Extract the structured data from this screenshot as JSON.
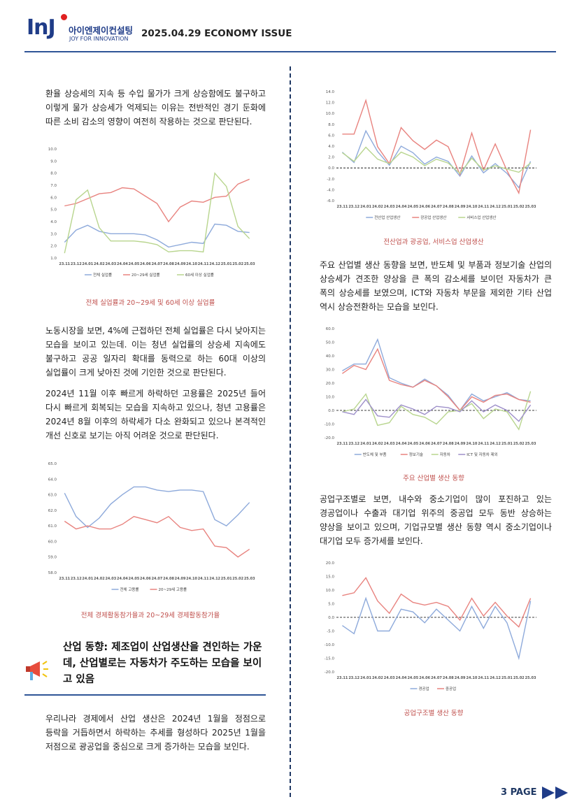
{
  "header": {
    "logo_mark": "InJ",
    "logo_name": "아이엔제이컨설팅",
    "logo_slogan": "JOY FOR INNOVATION",
    "title": "2025.04.29 ECONOMY ISSUE"
  },
  "paragraphs": [
    "환율 상승세의 지속 등 수입 물가가 크게 상승함에도 불구하고 이렇게 물가 상승세가 억제되는 이유는 전반적인 경기 둔화에 따른 소비 감소의 영향이 여전히 작용하는 것으로 판단된다.",
    "노동시장을 보면, 4%에 근접하던 전체 실업률은 다시 낮아지는 모습을 보이고 있는데. 이는 청년 실업률의 상승세 지속에도 불구하고 공공 일자리 확대를 동력으로 하는 60대 이상의 실업률이 크게 낮아진 것에 기인한 것으로 판단된다.",
    "2024년 11월 이후 빠르게 하락하던 고용률은 2025년 들어 다시 빠르게 회복되는 모습을 지속하고 있으나, 청년 고용률은 2024년 8월 이후의 하락세가 다소 완화되고 있으나 본격적인 개선 신호로 보기는 아직 어려운 것으로 판단된다.",
    "우리나라 경제에서 산업 생산은 2024년 1월을 정점으로 등락을 거듭하면서 하락하는 추세를 형성하다 2025년 1월을 저점으로 광공업을 중심으로 크게 증가하는 모습을 보인다.",
    "주요 산업별 생산 동향을 보면, 반도체 및 부품과 정보기술 산업의 상승세가 견조한 양상을 큰 폭의 감소세를 보이던 자동차가 큰 폭의 상승세를 보였으며, ICT와 자동차 부문을 제외한 기타 산업 역시 상승전환하는 모습을 보인다.",
    "공업구조별로 보면, 내수와 중소기업이 많이 포진하고 있는 경공업이나 수출과 대기업 위주의 중공업 모두 동반 상승하는 양상을 보이고 있으며, 기업규모별 생산 동향 역시 중소기업이나 대기업 모두 증가세를 보인다."
  ],
  "section_heading": "산업 동향: 제조업이 산업생산을 견인하는 가운데, 산업별로는 자동차가 주도하는 모습을 보이고 있음",
  "footer": {
    "page": "3 PAGE"
  },
  "chart_data": [
    {
      "type": "line",
      "caption": "전체 실업률과 20~29세 및 60세 이상 실업률",
      "categories": [
        "23.11",
        "23.12",
        "24.01",
        "24.02",
        "24.03",
        "24.04",
        "24.05",
        "24.06",
        "24.07",
        "24.08",
        "24.09",
        "24.10",
        "24.11",
        "24.12",
        "25.01",
        "25.02",
        "25.03"
      ],
      "ylim": [
        1,
        10
      ],
      "yticks": [
        {
          "value": 1,
          "label": "1.0"
        },
        {
          "value": 2,
          "label": "2.0"
        },
        {
          "value": 3,
          "label": "3.0"
        },
        {
          "value": 4,
          "label": "4.0"
        },
        {
          "value": 5,
          "label": "5.0"
        },
        {
          "value": 6,
          "label": "6.0"
        },
        {
          "value": 7,
          "label": "7.0"
        },
        {
          "value": 8,
          "label": "8.0"
        },
        {
          "value": 9,
          "label": "9.0"
        },
        {
          "value": 10,
          "label": "10.0"
        }
      ],
      "zero_line": false,
      "series": [
        {
          "name": "전체 실업률",
          "color": "#8eaadb",
          "values": [
            2.3,
            3.3,
            3.7,
            3.2,
            3.0,
            3.0,
            3.0,
            2.9,
            2.5,
            1.9,
            2.1,
            2.3,
            2.2,
            3.8,
            3.7,
            3.2,
            3.1
          ]
        },
        {
          "name": "20~29세 실업률",
          "color": "#e8837f",
          "values": [
            5.3,
            5.5,
            5.9,
            6.3,
            6.4,
            6.8,
            6.7,
            6.1,
            5.5,
            4.0,
            5.2,
            5.7,
            5.6,
            6.0,
            6.1,
            7.1,
            7.5
          ]
        },
        {
          "name": "60세 이상 실업률",
          "color": "#b8d58e",
          "values": [
            1.4,
            5.8,
            6.6,
            3.5,
            2.4,
            2.4,
            2.4,
            2.3,
            2.1,
            1.5,
            1.6,
            1.6,
            1.5,
            8.0,
            6.9,
            3.6,
            2.6
          ]
        }
      ]
    },
    {
      "type": "line",
      "caption": "전체 경제활동참가율과 20~29세 경제활동참가율",
      "categories": [
        "23.11",
        "23.12",
        "24.01",
        "24.02",
        "24.03",
        "24.04",
        "24.05",
        "24.06",
        "24.07",
        "24.08",
        "24.09",
        "24.10",
        "24.11",
        "24.12",
        "25.01",
        "25.02",
        "25.03"
      ],
      "ylim": [
        58,
        65
      ],
      "yticks": [
        {
          "value": 58,
          "label": "58.0"
        },
        {
          "value": 59,
          "label": "59.0"
        },
        {
          "value": 60,
          "label": "60.0"
        },
        {
          "value": 61,
          "label": "61.0"
        },
        {
          "value": 62,
          "label": "62.0"
        },
        {
          "value": 63,
          "label": "63.0"
        },
        {
          "value": 64,
          "label": "64.0"
        },
        {
          "value": 65,
          "label": "65.0"
        }
      ],
      "zero_line": false,
      "series": [
        {
          "name": "전체 고용률",
          "color": "#8eaadb",
          "values": [
            63.1,
            61.6,
            60.9,
            61.5,
            62.4,
            63.0,
            63.5,
            63.5,
            63.3,
            63.2,
            63.3,
            63.3,
            63.2,
            61.4,
            61.0,
            61.7,
            62.5
          ]
        },
        {
          "name": "20~29세 고용률",
          "color": "#e8837f",
          "values": [
            61.3,
            60.8,
            61.0,
            60.8,
            60.8,
            61.1,
            61.6,
            61.4,
            61.2,
            61.6,
            60.9,
            60.7,
            60.8,
            59.7,
            59.6,
            59.0,
            59.5
          ]
        }
      ]
    },
    {
      "type": "line",
      "caption": "전산업과 광공업, 서비스업 산업생산",
      "categories": [
        "23.11",
        "23.12",
        "24.01",
        "24.02",
        "24.03",
        "24.04",
        "24.05",
        "24.06",
        "24.07",
        "24.08",
        "24.09",
        "24.10",
        "24.11",
        "24.12",
        "25.01",
        "25.02",
        "25.03"
      ],
      "ylim": [
        -6,
        14
      ],
      "yticks": [
        {
          "value": -6,
          "label": "-6.0"
        },
        {
          "value": -4,
          "label": "-4.0"
        },
        {
          "value": -2,
          "label": "-2.0"
        },
        {
          "value": 0,
          "label": "0.0"
        },
        {
          "value": 2,
          "label": "2.0"
        },
        {
          "value": 4,
          "label": "4.0"
        },
        {
          "value": 6,
          "label": "6.0"
        },
        {
          "value": 8,
          "label": "8.0"
        },
        {
          "value": 10,
          "label": "10.0"
        },
        {
          "value": 12,
          "label": "12.0"
        },
        {
          "value": 14,
          "label": "14.0"
        }
      ],
      "zero_line": true,
      "series": [
        {
          "name": "전산업 산업생산",
          "color": "#8eaadb",
          "values": [
            2.9,
            1.0,
            6.8,
            3.0,
            0.5,
            4.0,
            2.8,
            0.7,
            2.0,
            1.2,
            -1.5,
            2.2,
            -0.9,
            0.8,
            -1.0,
            -3.6,
            1.2
          ]
        },
        {
          "name": "광공업 산업생산",
          "color": "#e8837f",
          "values": [
            6.2,
            6.2,
            12.4,
            3.9,
            0.8,
            7.4,
            5.0,
            3.4,
            5.1,
            3.9,
            -1.2,
            6.4,
            -0.4,
            4.4,
            -0.5,
            -4.6,
            7.0
          ]
        },
        {
          "name": "서비스업 산업생산",
          "color": "#b8d58e",
          "values": [
            2.8,
            1.2,
            3.8,
            1.6,
            0.8,
            2.9,
            2.0,
            0.4,
            1.6,
            0.9,
            -1.0,
            1.8,
            -0.4,
            0.4,
            -0.2,
            -0.8,
            0.9
          ]
        }
      ]
    },
    {
      "type": "line",
      "caption": "주요 산업별 생산 동향",
      "categories": [
        "23.11",
        "23.12",
        "24.01",
        "24.02",
        "24.03",
        "24.04",
        "24.05",
        "24.06",
        "24.07",
        "24.08",
        "24.09",
        "24.10",
        "24.11",
        "24.12",
        "25.01",
        "25.02",
        "25.03"
      ],
      "ylim": [
        -20,
        60
      ],
      "yticks": [
        {
          "value": -20,
          "label": "-20.0"
        },
        {
          "value": -10,
          "label": "-10.0"
        },
        {
          "value": 0,
          "label": "0.0"
        },
        {
          "value": 10,
          "label": "10.0"
        },
        {
          "value": 20,
          "label": "20.0"
        },
        {
          "value": 30,
          "label": "30.0"
        },
        {
          "value": 40,
          "label": "40.0"
        },
        {
          "value": 50,
          "label": "50.0"
        },
        {
          "value": 60,
          "label": "60.0"
        }
      ],
      "zero_line": true,
      "series": [
        {
          "name": "반도체 및 부품",
          "color": "#8eaadb",
          "values": [
            29,
            34,
            34,
            52,
            24,
            20,
            17,
            23,
            18,
            11,
            0,
            12,
            7,
            10,
            13,
            8,
            7
          ]
        },
        {
          "name": "정보기술",
          "color": "#e8837f",
          "values": [
            27,
            33,
            30,
            45,
            22,
            19,
            17,
            22,
            18,
            10,
            0,
            10,
            6,
            11,
            12,
            8,
            6
          ]
        },
        {
          "name": "자동차",
          "color": "#b8d58e",
          "values": [
            -1,
            1,
            12,
            -11,
            -9,
            3,
            -3,
            -5,
            -10,
            -1,
            0,
            5,
            -6,
            1,
            -1,
            -14,
            14
          ]
        },
        {
          "name": "ICT 및 자동차 제외",
          "color": "#9d8fc9",
          "values": [
            -1,
            -3,
            8,
            -4,
            -5,
            4,
            1,
            -3,
            3,
            2,
            -1,
            7,
            -1,
            4,
            0,
            -8,
            4
          ]
        }
      ]
    },
    {
      "type": "line",
      "caption": "공업구조별 생산 동향",
      "categories": [
        "23.11",
        "23.12",
        "24.01",
        "24.02",
        "24.03",
        "24.04",
        "24.05",
        "24.06",
        "24.07",
        "24.08",
        "24.09",
        "24.10",
        "24.11",
        "24.12",
        "25.01",
        "25.02",
        "25.03"
      ],
      "ylim": [
        -20,
        20
      ],
      "yticks": [
        {
          "value": -20,
          "label": "-20.0"
        },
        {
          "value": -15,
          "label": "-15.0"
        },
        {
          "value": -10,
          "label": "-10.0"
        },
        {
          "value": -5,
          "label": "-5.0"
        },
        {
          "value": 0,
          "label": "0.0"
        },
        {
          "value": 5,
          "label": "5.0"
        },
        {
          "value": 10,
          "label": "10.0"
        },
        {
          "value": 15,
          "label": "15.0"
        },
        {
          "value": 20,
          "label": "20.0"
        }
      ],
      "zero_line": true,
      "series": [
        {
          "name": "경공업",
          "color": "#8eaadb",
          "values": [
            -3,
            -6,
            7,
            -5,
            -5,
            3,
            2,
            -2,
            3,
            -1,
            -5,
            4,
            -4,
            4,
            -2,
            -15,
            6
          ]
        },
        {
          "name": "중공업",
          "color": "#e8837f",
          "values": [
            8,
            9,
            14.5,
            6,
            1.5,
            8.5,
            5.5,
            4.5,
            5.5,
            4,
            -1,
            7,
            0.5,
            5.5,
            0.5,
            -3.5,
            7
          ]
        }
      ]
    }
  ]
}
